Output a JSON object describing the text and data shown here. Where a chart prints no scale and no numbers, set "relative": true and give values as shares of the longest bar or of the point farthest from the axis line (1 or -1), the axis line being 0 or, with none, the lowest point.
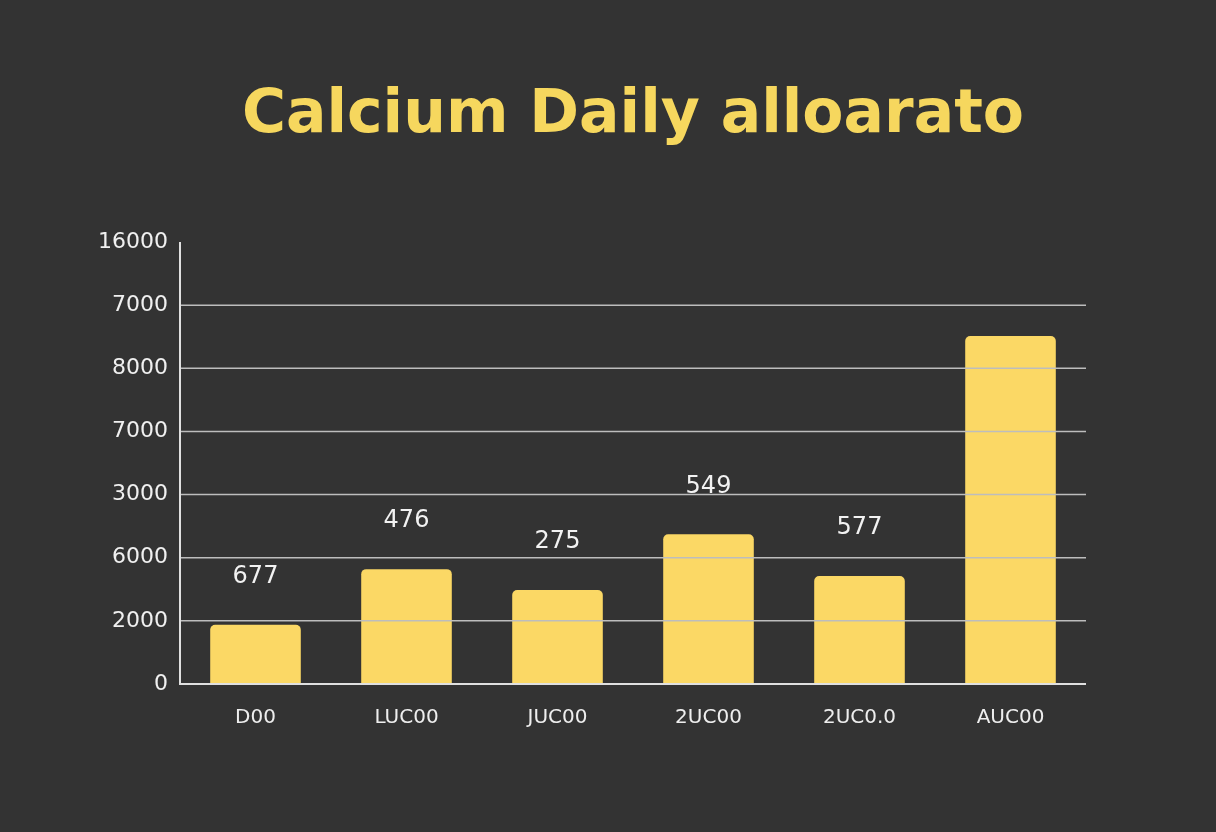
{
  "chart_data": {
    "type": "bar",
    "title": "Calcium Daily alloarato",
    "categories": [
      "D00",
      "LUC00",
      "JUC00",
      "2UC00",
      "2UC0.0",
      "AUC00"
    ],
    "values": [
      0.17,
      0.33,
      0.27,
      0.43,
      0.31,
      1
    ],
    "relative": true,
    "color": "#fbd865",
    "annotations": [
      "0",
      "2000",
      "6000",
      "3000",
      "7000",
      "8000",
      "7000",
      "16000",
      "677",
      "476",
      "275",
      "549",
      "577"
    ],
    "grid": "y",
    "legend": false
  }
}
